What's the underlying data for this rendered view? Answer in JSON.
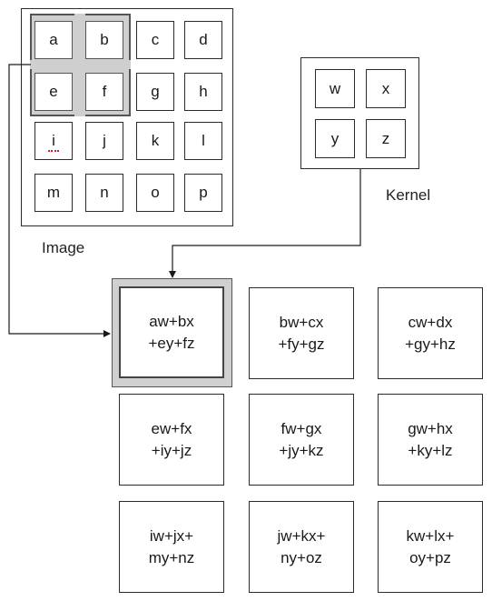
{
  "image_grid": {
    "label": "Image",
    "cells": [
      "a",
      "b",
      "c",
      "d",
      "e",
      "f",
      "g",
      "h",
      "i",
      "j",
      "k",
      "l",
      "m",
      "n",
      "o",
      "p"
    ]
  },
  "kernel": {
    "label": "Kernel",
    "cells": [
      "w",
      "x",
      "y",
      "z"
    ]
  },
  "output": {
    "cells": [
      {
        "line1": "aw+bx",
        "line2": "+ey+fz"
      },
      {
        "line1": "bw+cx",
        "line2": "+fy+gz"
      },
      {
        "line1": "cw+dx",
        "line2": "+gy+hz"
      },
      {
        "line1": "ew+fx",
        "line2": "+iy+jz"
      },
      {
        "line1": "fw+gx",
        "line2": "+jy+kz"
      },
      {
        "line1": "gw+hx",
        "line2": "+ky+lz"
      },
      {
        "line1": "iw+jx+",
        "line2": "my+nz"
      },
      {
        "line1": "jw+kx+",
        "line2": "ny+oz"
      },
      {
        "line1": "kw+lx+",
        "line2": "oy+pz"
      }
    ]
  }
}
